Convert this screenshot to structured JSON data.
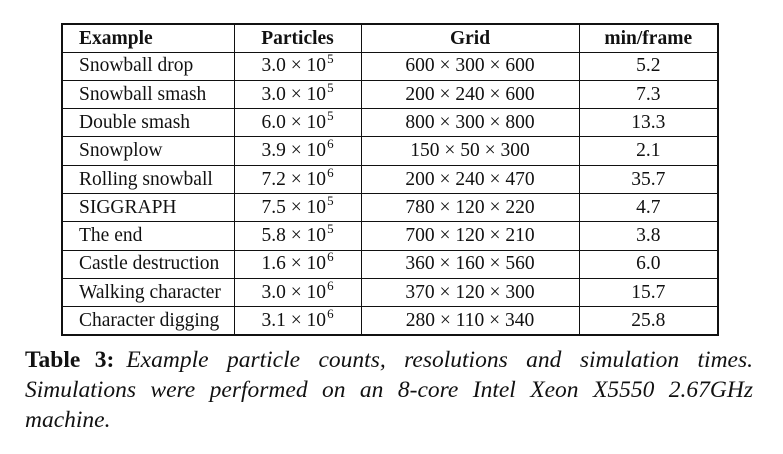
{
  "table": {
    "headers": [
      "Example",
      "Particles",
      "Grid",
      "min/frame"
    ],
    "rows": [
      {
        "example": "Snowball drop",
        "particles_mant": "3.0 × 10",
        "particles_exp": "5",
        "grid": "600 × 300 × 600",
        "min_frame": "5.2"
      },
      {
        "example": "Snowball smash",
        "particles_mant": "3.0 × 10",
        "particles_exp": "5",
        "grid": "200 × 240 × 600",
        "min_frame": "7.3"
      },
      {
        "example": "Double smash",
        "particles_mant": "6.0 × 10",
        "particles_exp": "5",
        "grid": "800 × 300 × 800",
        "min_frame": "13.3"
      },
      {
        "example": "Snowplow",
        "particles_mant": "3.9 × 10",
        "particles_exp": "6",
        "grid": "150 × 50 × 300",
        "min_frame": "2.1"
      },
      {
        "example": "Rolling snowball",
        "particles_mant": "7.2 × 10",
        "particles_exp": "6",
        "grid": "200 × 240 × 470",
        "min_frame": "35.7"
      },
      {
        "example": "SIGGRAPH",
        "particles_mant": "7.5 × 10",
        "particles_exp": "5",
        "grid": "780 × 120 × 220",
        "min_frame": "4.7"
      },
      {
        "example": "The end",
        "particles_mant": "5.8 × 10",
        "particles_exp": "5",
        "grid": "700 × 120 × 210",
        "min_frame": "3.8"
      },
      {
        "example": "Castle destruction",
        "particles_mant": "1.6 × 10",
        "particles_exp": "6",
        "grid": "360 × 160 × 560",
        "min_frame": "6.0"
      },
      {
        "example": "Walking character",
        "particles_mant": "3.0 × 10",
        "particles_exp": "6",
        "grid": "370 × 120 × 300",
        "min_frame": "15.7"
      },
      {
        "example": "Character digging",
        "particles_mant": "3.1 × 10",
        "particles_exp": "6",
        "grid": "280 × 110 × 340",
        "min_frame": "25.8"
      }
    ]
  },
  "caption": {
    "label": "Table 3:",
    "text": "Example particle counts, resolutions and simulation times. Simulations were performed on an 8-core Intel Xeon X5550 2.67GHz machine."
  }
}
